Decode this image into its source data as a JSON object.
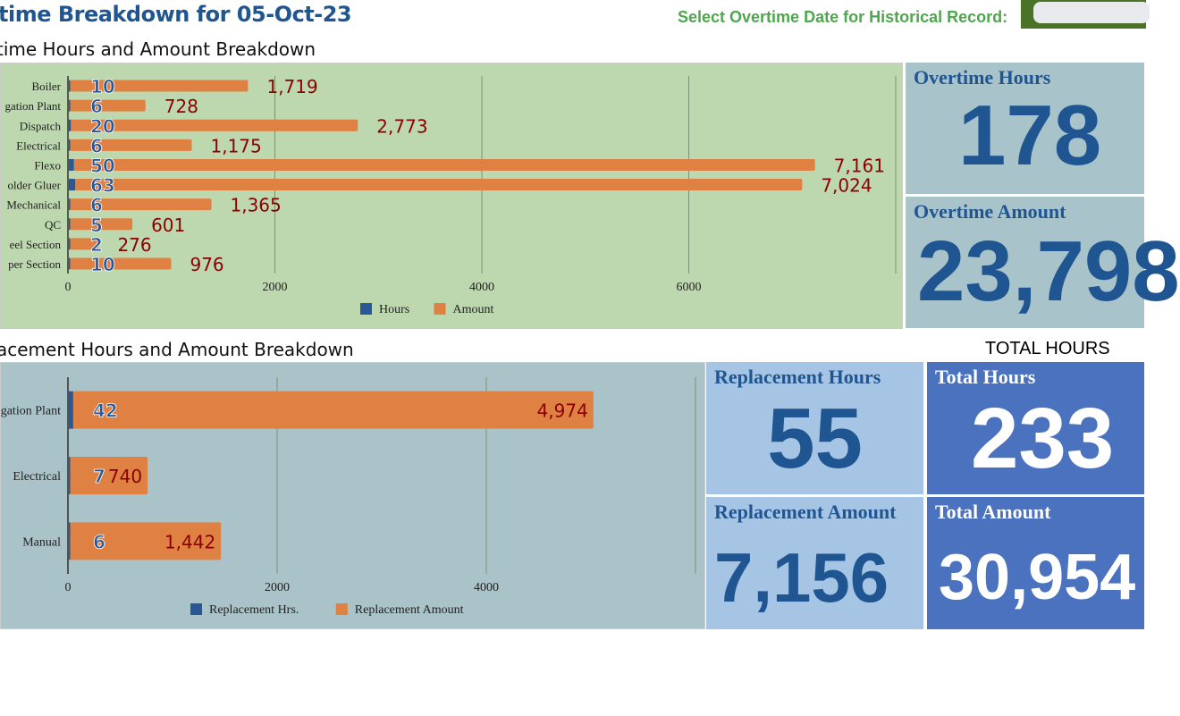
{
  "header": {
    "title": "time Breakdown for 05-Oct-23",
    "date_label": "Select Overtime Date for Historical Record:",
    "date_value": ""
  },
  "section1_title": "time Hours and Amount Breakdown",
  "section2_title": "acement Hours and Amount Breakdown",
  "total_header": "TOTAL HOURS",
  "cards": {
    "overtime_hours": {
      "label": "Overtime Hours",
      "value": "178"
    },
    "overtime_amount": {
      "label": "Overtime Amount",
      "value": "23,798"
    },
    "replacement_hours": {
      "label": "Replacement Hours",
      "value": "55"
    },
    "replacement_amount": {
      "label": "Replacement Amount",
      "value": "7,156"
    },
    "total_hours": {
      "label": "Total Hours",
      "value": "233"
    },
    "total_amount": {
      "label": "Total Amount",
      "value": "30,954"
    }
  },
  "colors": {
    "hours": "#2a5796",
    "amount": "#e08144",
    "amount_label": "#8b0000",
    "hours_label": "#2a5796"
  },
  "chart_data": [
    {
      "type": "bar",
      "orientation": "horizontal",
      "stacked": true,
      "categories": [
        "Boiler",
        "gation Plant",
        "Dispatch",
        "Electrical",
        "Flexo",
        "older Gluer",
        "Mechanical",
        "QC",
        "eel Section",
        "per Section"
      ],
      "series": [
        {
          "name": "Hours",
          "values": [
            10,
            6,
            20,
            6,
            50,
            63,
            6,
            5,
            2,
            10
          ]
        },
        {
          "name": "Amount",
          "values": [
            1719,
            728,
            2773,
            1175,
            7161,
            7024,
            1365,
            601,
            276,
            976
          ]
        }
      ],
      "value_labels_amount": [
        "1,719",
        "728",
        "2,773",
        "1,175",
        "7,161",
        "7,024",
        "1,365",
        "601",
        "276",
        "976"
      ],
      "xlim": [
        0,
        8000
      ],
      "ticks": [
        "0",
        "2000",
        "4000",
        "6000"
      ],
      "grid": true,
      "legend": "bottom"
    },
    {
      "type": "bar",
      "orientation": "horizontal",
      "stacked": true,
      "categories": [
        "gation Plant",
        "Electrical",
        "Manual"
      ],
      "series": [
        {
          "name": "Replacement Hrs.",
          "values": [
            42,
            7,
            6
          ]
        },
        {
          "name": "Replacement Amount",
          "values": [
            4974,
            740,
            1442
          ]
        }
      ],
      "value_labels_amount": [
        "4,974",
        "740",
        "1,442"
      ],
      "xlim": [
        0,
        6000
      ],
      "ticks": [
        "0",
        "2000",
        "4000"
      ],
      "grid": true,
      "legend": "bottom"
    }
  ]
}
